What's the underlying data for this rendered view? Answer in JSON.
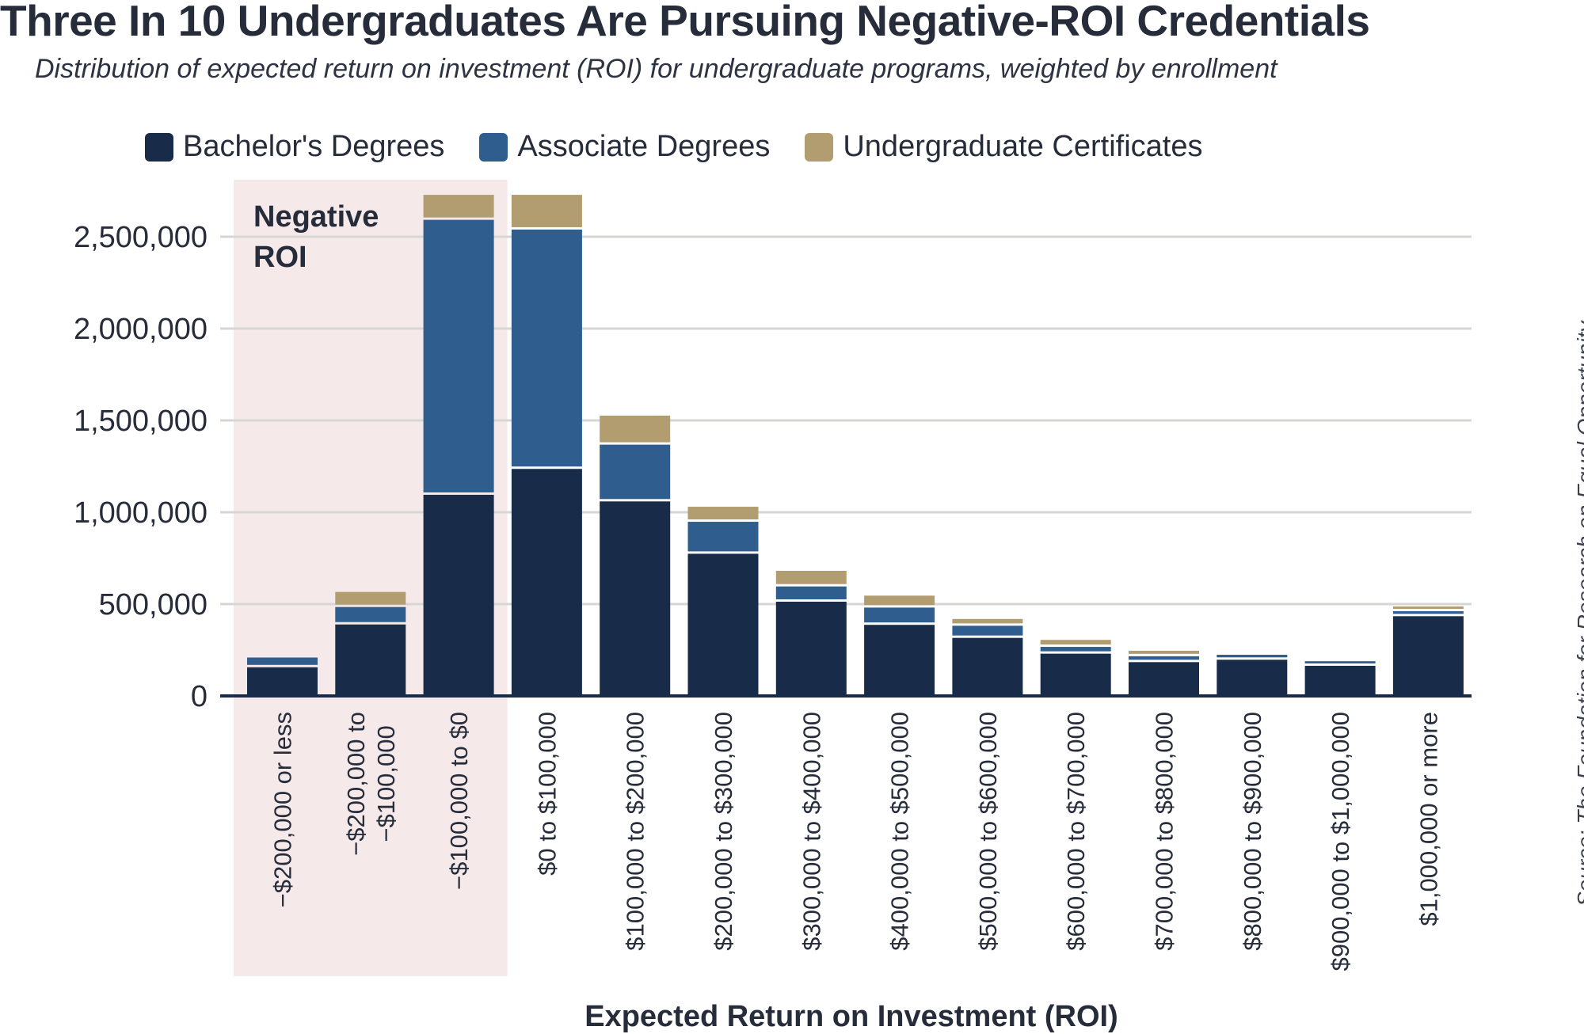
{
  "title": "Three In 10 Undergraduates Are Pursuing Negative-ROI Credentials",
  "subtitle": "Distribution of expected return on investment (ROI) for undergraduate programs, weighted by enrollment",
  "source": "Source: The Foundation for Research on Equal Opportunity",
  "colors": {
    "bachelors": "#182b49",
    "associate": "#2e5d8e",
    "certificates": "#b19d6f",
    "negative_region": "#f6e9ea",
    "grid": "#d6d6d3",
    "text": "#262c3a"
  },
  "legend": [
    {
      "label": "Bachelor's Degrees",
      "color": "#182b49"
    },
    {
      "label": "Associate Degrees",
      "color": "#2e5d8e"
    },
    {
      "label": "Undergraduate Certificates",
      "color": "#b19d6f"
    }
  ],
  "chart_data": {
    "type": "bar",
    "stacked": true,
    "title": "Three In 10 Undergraduates Are Pursuing Negative-ROI Credentials",
    "xlabel": "Expected Return on Investment (ROI)",
    "ylabel": "",
    "ylim": [
      0,
      2750000
    ],
    "yticks": [
      0,
      500000,
      1000000,
      1500000,
      2000000,
      2500000
    ],
    "ytick_labels": [
      "0",
      "500,000",
      "1,000,000",
      "1,500,000",
      "2,000,000",
      "2,500,000"
    ],
    "grid": true,
    "legend_position": "top",
    "annotation": {
      "text": [
        "Negative",
        "ROI"
      ],
      "region_categories": [
        0,
        2
      ]
    },
    "categories": [
      "−$200,000 or less",
      "−$200,000 to −$100,000",
      "−$100,000 to $0",
      "$0 to $100,000",
      "$100,000 to $200,000",
      "$200,000 to $300,000",
      "$300,000 to $400,000",
      "$400,000 to $500,000",
      "$500,000 to $600,000",
      "$600,000 to $700,000",
      "$700,000 to $800,000",
      "$800,000 to $900,000",
      "$900,000 to $1,000,000",
      "$1,000,000 or more"
    ],
    "category_lines": [
      [
        "−$200,000 or less"
      ],
      [
        "−$200,000 to",
        "−$100,000"
      ],
      [
        "−$100,000 to $0"
      ],
      [
        "$0 to $100,000"
      ],
      [
        "$100,000 to $200,000"
      ],
      [
        "$200,000 to $300,000"
      ],
      [
        "$300,000 to $400,000"
      ],
      [
        "$400,000 to $500,000"
      ],
      [
        "$500,000 to $600,000"
      ],
      [
        "$600,000 to $700,000"
      ],
      [
        "$700,000 to $800,000"
      ],
      [
        "$800,000 to $900,000"
      ],
      [
        "$900,000 to $1,000,000"
      ],
      [
        "$1,000,000 or more"
      ]
    ],
    "series": [
      {
        "name": "Bachelor's Degrees",
        "color": "#182b49",
        "values": [
          156000,
          389000,
          1095000,
          1236000,
          1059000,
          774000,
          513000,
          387000,
          316000,
          230000,
          184000,
          197000,
          164000,
          434000
        ]
      },
      {
        "name": "Associate Degrees",
        "color": "#2e5d8e",
        "values": [
          53000,
          95000,
          1497000,
          1303000,
          309000,
          174000,
          83000,
          94000,
          66000,
          37000,
          32000,
          27000,
          25000,
          27000
        ]
      },
      {
        "name": "Undergraduate Certificates",
        "color": "#b19d6f",
        "values": [
          0,
          82000,
          136000,
          189000,
          158000,
          82000,
          85000,
          65000,
          37000,
          38000,
          30000,
          0,
          0,
          26000
        ]
      }
    ]
  }
}
